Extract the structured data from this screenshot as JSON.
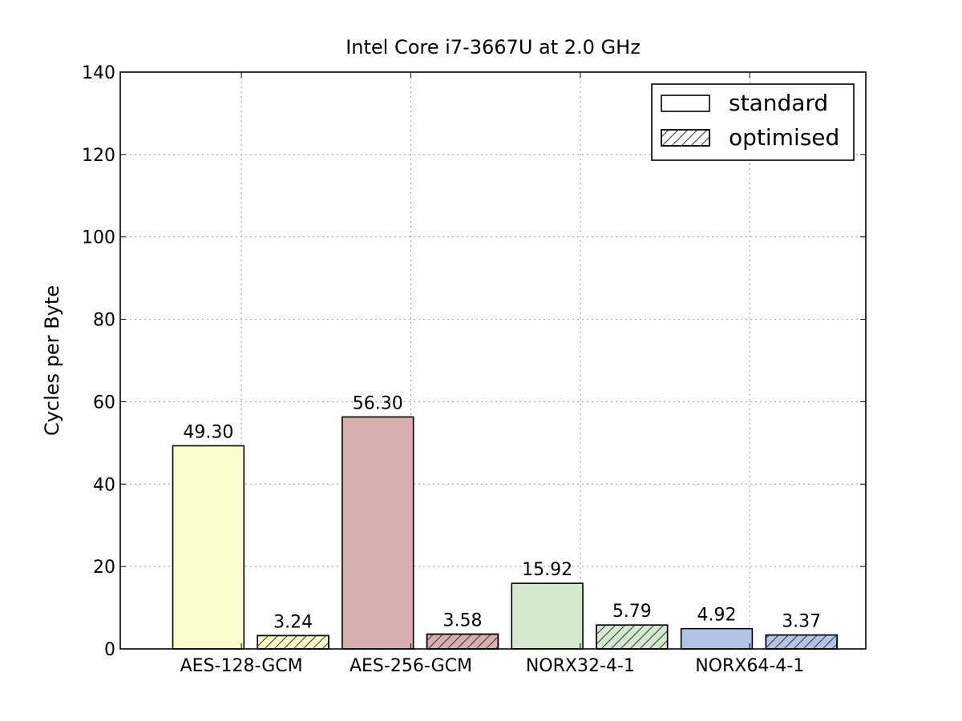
{
  "chart_data": {
    "type": "bar",
    "title": "Intel Core i7-3667U at 2.0 GHz",
    "xlabel": "",
    "ylabel": "Cycles per Byte",
    "ylim": [
      0,
      140
    ],
    "yticks": [
      0,
      20,
      40,
      60,
      80,
      100,
      120,
      140
    ],
    "grid": true,
    "legend_position": "top-right",
    "categories": [
      "AES-128-GCM",
      "AES-256-GCM",
      "NORX32-4-1",
      "NORX64-4-1"
    ],
    "category_colors": [
      "#fbfbcb",
      "#d6b0b0",
      "#d4e8d0",
      "#b2c4e4"
    ],
    "series": [
      {
        "name": "standard",
        "hatch": false,
        "values": [
          49.3,
          56.3,
          15.92,
          4.92
        ],
        "labels": [
          "49.30",
          "56.30",
          "15.92",
          "4.92"
        ]
      },
      {
        "name": "optimised",
        "hatch": true,
        "values": [
          3.24,
          3.58,
          5.79,
          3.37
        ],
        "labels": [
          "3.24",
          "3.58",
          "5.79",
          "3.37"
        ]
      }
    ]
  }
}
